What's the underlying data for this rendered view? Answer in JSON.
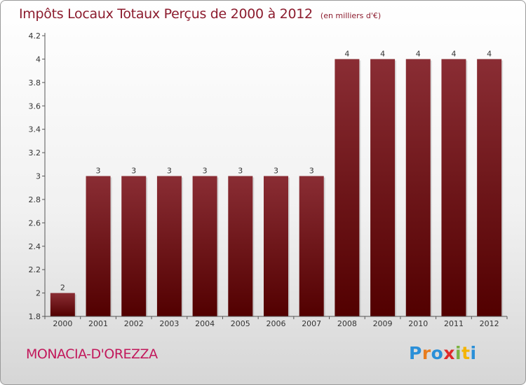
{
  "header": {
    "title": "Impôts Locaux Totaux Perçus de 2000 à 2012",
    "unit": "(en milliers d'€)"
  },
  "commune": "MONACIA-D'OREZZA",
  "logo": {
    "text": "Proxiti",
    "letters": [
      "P",
      "r",
      "o",
      "x",
      "i",
      "t",
      "i"
    ],
    "colors": [
      "#2a8fd8",
      "#e87d1e",
      "#2a8fd8",
      "#e02a2a",
      "#7cb342",
      "#f4b400",
      "#2a8fd8"
    ]
  },
  "colors": {
    "bar_top": "#8a2d34",
    "bar_bottom": "#520000",
    "axis": "#555555",
    "text": "#333333"
  },
  "chart_data": {
    "type": "bar",
    "title": "Impôts Locaux Totaux Perçus de 2000 à 2012",
    "ylabel": "en milliers d'€",
    "xlabel": "",
    "categories": [
      "2000",
      "2001",
      "2002",
      "2003",
      "2004",
      "2005",
      "2006",
      "2007",
      "2008",
      "2009",
      "2010",
      "2011",
      "2012"
    ],
    "values": [
      2,
      3,
      3,
      3,
      3,
      3,
      3,
      3,
      4,
      4,
      4,
      4,
      4
    ],
    "data_labels": [
      "2",
      "3",
      "3",
      "3",
      "3",
      "3",
      "3",
      "3",
      "4",
      "4",
      "4",
      "4",
      "4"
    ],
    "ylim": [
      1.8,
      4.2
    ],
    "yticks": [
      1.8,
      2,
      2.2,
      2.4,
      2.6,
      2.8,
      3,
      3.2,
      3.4,
      3.6,
      3.8,
      4,
      4.2
    ],
    "ytick_labels": [
      "1.8",
      "2",
      "2.2",
      "2.4",
      "2.6",
      "2.8",
      "3",
      "3.2",
      "3.4",
      "3.6",
      "3.8",
      "4",
      "4.2"
    ],
    "grid": false,
    "legend": "none"
  }
}
